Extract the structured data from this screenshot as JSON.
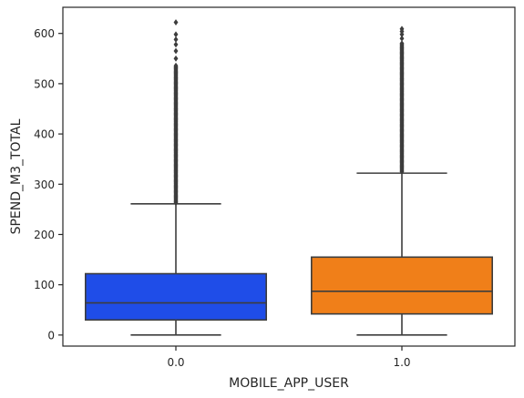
{
  "chart_data": {
    "type": "box",
    "title": "",
    "xlabel": "MOBILE_APP_USER",
    "ylabel": "SPEND_M3_TOTAL",
    "ylim": [
      -22,
      652
    ],
    "yticks": [
      0,
      100,
      200,
      300,
      400,
      500,
      600
    ],
    "grid": false,
    "categories": [
      "0.0",
      "1.0"
    ],
    "boxes": [
      {
        "category": "0.0",
        "color": "#1f4de8",
        "min": 0,
        "q1": 30,
        "median": 64,
        "q3": 122,
        "whisker_high": 261,
        "outliers_from": 263,
        "outliers_to": 537,
        "outliers_sparse": [
          550,
          565,
          578,
          588,
          598,
          622
        ]
      },
      {
        "category": "1.0",
        "color": "#f07f19",
        "min": 0,
        "q1": 42,
        "median": 87,
        "q3": 155,
        "whisker_high": 322,
        "outliers_from": 325,
        "outliers_to": 582,
        "outliers_sparse": [
          590,
          598,
          604,
          609
        ]
      }
    ]
  }
}
